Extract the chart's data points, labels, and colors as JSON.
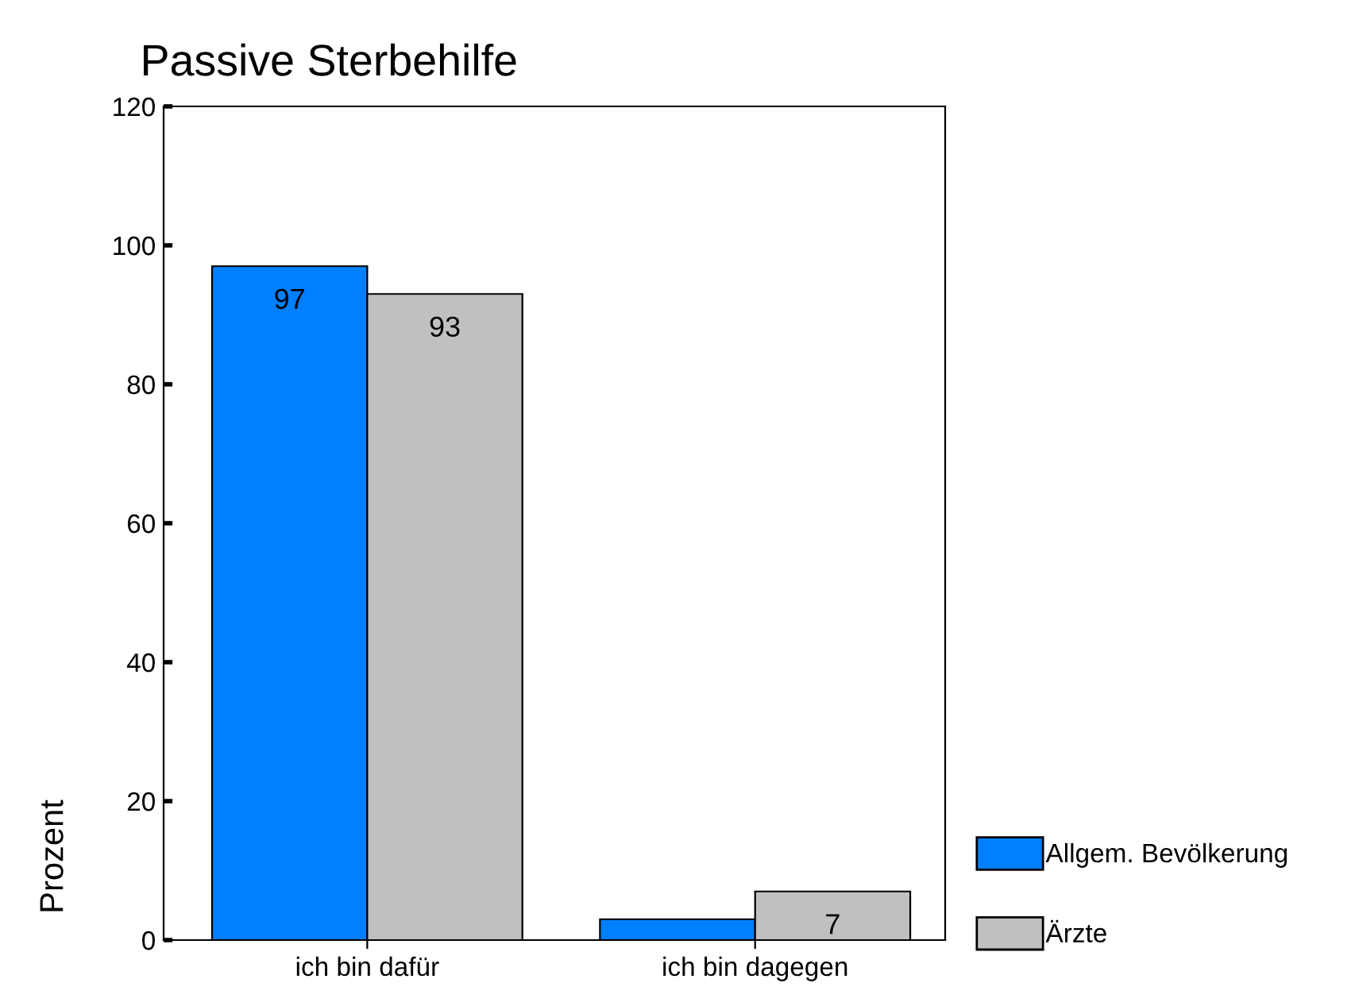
{
  "chart_data": {
    "type": "bar",
    "title": "Passive Sterbehilfe",
    "ylabel": "Prozent",
    "categories": [
      "ich bin dafür",
      "ich bin dagegen"
    ],
    "series": [
      {
        "name": "Allgem. Bevölkerung",
        "color": "#0080ff",
        "values": [
          97,
          3
        ],
        "value_labels": [
          "97",
          null
        ]
      },
      {
        "name": "Ärzte",
        "color": "#c0c0c0",
        "values": [
          93,
          7
        ],
        "value_labels": [
          "93",
          "7"
        ]
      }
    ],
    "ylim": [
      0,
      120
    ],
    "yticks": [
      0,
      20,
      40,
      60,
      80,
      100,
      120
    ],
    "grid": false,
    "legend": "bottom right"
  }
}
